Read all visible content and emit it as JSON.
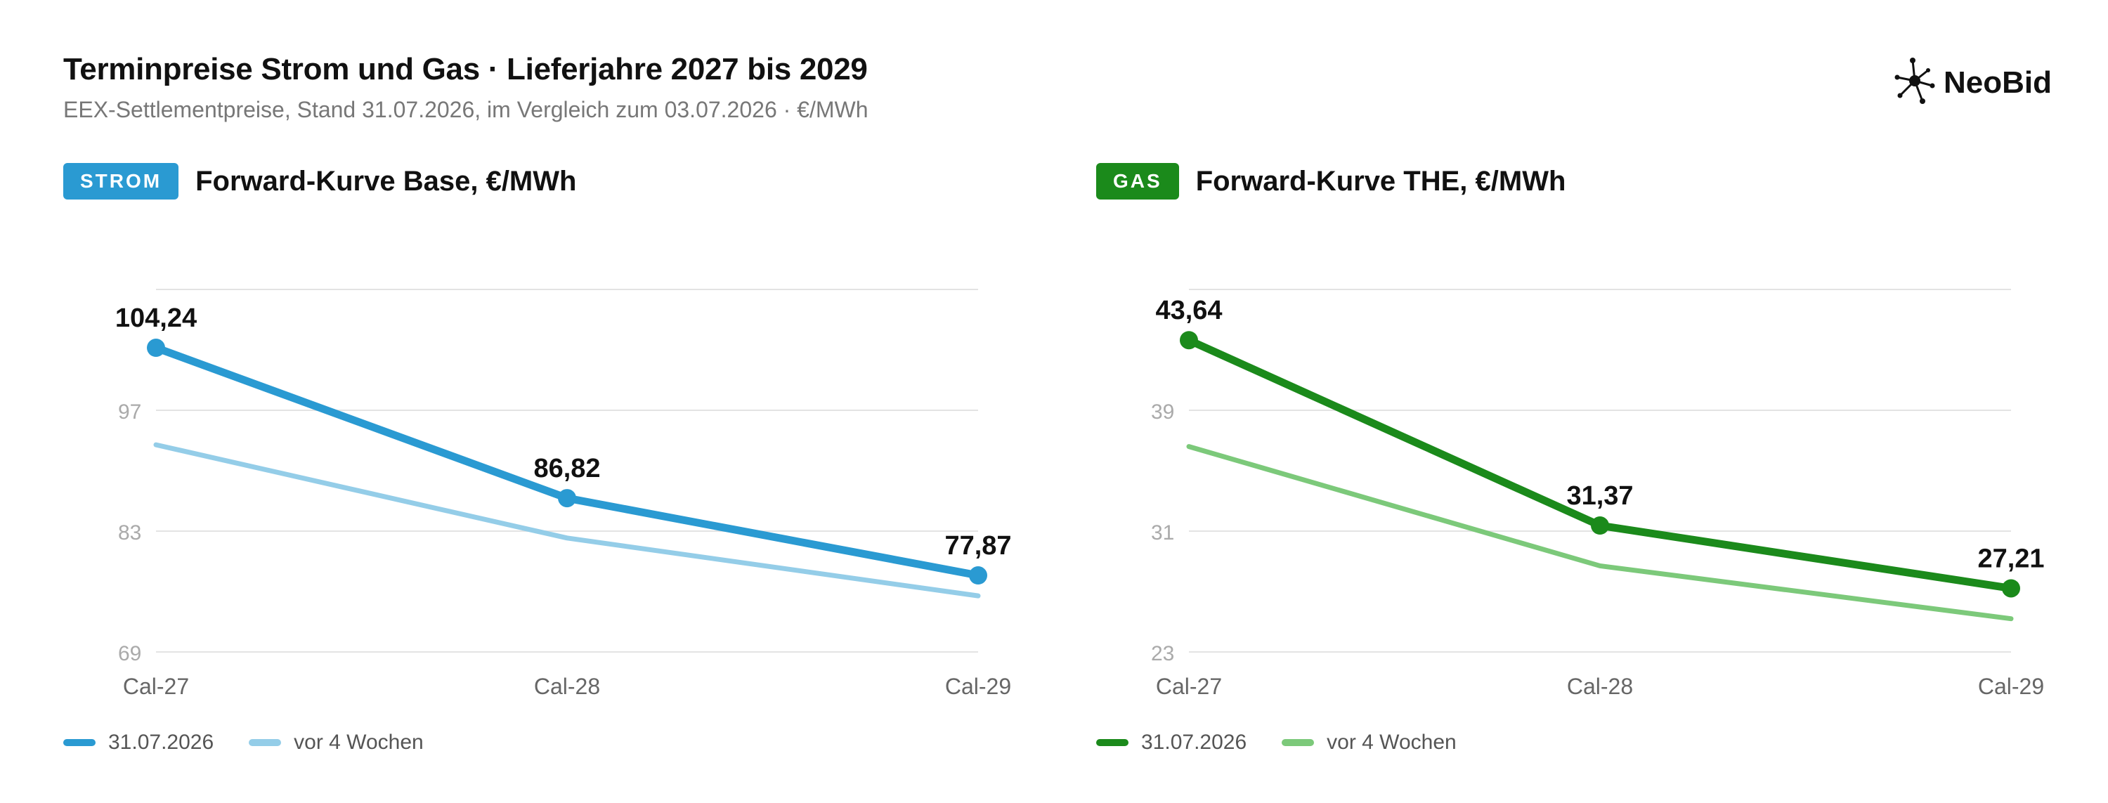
{
  "header": {
    "title": "Terminpreise Strom und Gas · Lieferjahre 2027 bis 2029",
    "subtitle": "EEX-Settlementpreise, Stand 31.07.2026, im Vergleich zum 03.07.2026 · €/MWh",
    "brand": "NeoBid",
    "brand_icon": "network-node-icon"
  },
  "panels": [
    {
      "badge": "STROM",
      "title": "Forward-Kurve Base, €/MWh",
      "accent": "#2a9ad2",
      "light": "#94cde8"
    },
    {
      "badge": "GAS",
      "title": "Forward-Kurve THE, €/MWh",
      "accent": "#1b8a1b",
      "light": "#7cc97a"
    }
  ],
  "chart_data": [
    {
      "type": "line",
      "categories": [
        "Cal-27",
        "Cal-28",
        "Cal-29"
      ],
      "ylim": [
        69,
        111
      ],
      "yticks": [
        69,
        83,
        97
      ],
      "ytick_labels": [
        "69",
        "83",
        "97"
      ],
      "grid": true,
      "legend": "bottom-left",
      "series": [
        {
          "name": "31.07.2026",
          "values": [
            104.24,
            86.82,
            77.87
          ],
          "data_labels": [
            "104,24",
            "86,82",
            "77,87"
          ],
          "color": "#2a9ad2"
        },
        {
          "name": "vor 4 Wochen",
          "values": [
            93.0,
            82.2,
            75.5
          ],
          "color": "#94cde8"
        }
      ]
    },
    {
      "type": "line",
      "categories": [
        "Cal-27",
        "Cal-28",
        "Cal-29"
      ],
      "ylim": [
        23,
        47
      ],
      "yticks": [
        23,
        31,
        39
      ],
      "ytick_labels": [
        "23",
        "31",
        "39"
      ],
      "grid": true,
      "legend": "bottom-left",
      "series": [
        {
          "name": "31.07.2026",
          "values": [
            43.64,
            31.37,
            27.21
          ],
          "data_labels": [
            "43,64",
            "31,37",
            "27,21"
          ],
          "color": "#1b8a1b"
        },
        {
          "name": "vor 4 Wochen",
          "values": [
            36.6,
            28.7,
            25.2
          ],
          "color": "#7cc97a"
        }
      ]
    }
  ]
}
